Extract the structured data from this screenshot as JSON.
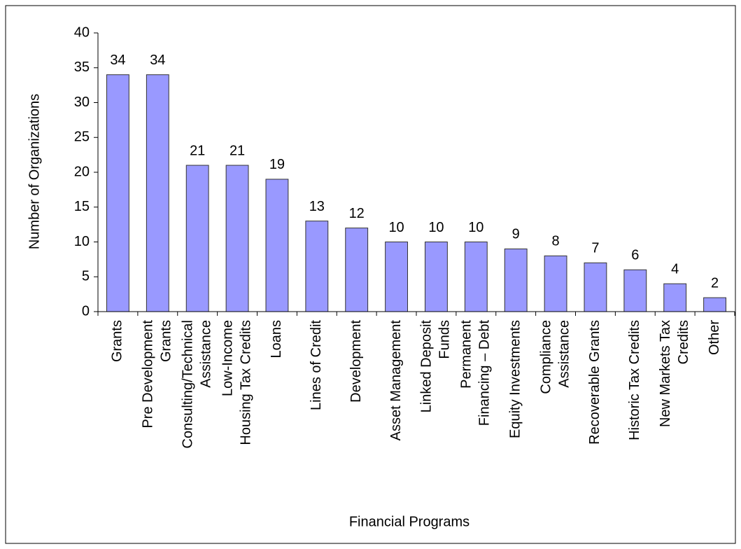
{
  "chart_data": {
    "type": "bar",
    "x_label": "Financial Programs",
    "y_label": "Number of Organizations",
    "categories": [
      [
        "Grants"
      ],
      [
        "Pre Development",
        "Grants"
      ],
      [
        "Consulting/Technical",
        "Assistance"
      ],
      [
        "Low-Income",
        "Housing Tax Credits"
      ],
      [
        "Loans"
      ],
      [
        "Lines of Credit"
      ],
      [
        "Development"
      ],
      [
        "Asset Management"
      ],
      [
        "Linked Deposit",
        "Funds"
      ],
      [
        "Permanent",
        "Financing – Debt"
      ],
      [
        "Equity Investments"
      ],
      [
        "Compliance",
        "Assistance"
      ],
      [
        "Recoverable Grants"
      ],
      [
        "Historic Tax Credits"
      ],
      [
        "New Markets Tax",
        "Credits"
      ],
      [
        "Other"
      ]
    ],
    "values": [
      34,
      34,
      21,
      21,
      19,
      13,
      12,
      10,
      10,
      10,
      9,
      8,
      7,
      6,
      4,
      2
    ],
    "color": "#9999ff",
    "ylim": [
      0,
      40
    ],
    "yticks": [
      0,
      5,
      10,
      15,
      20,
      25,
      30,
      35,
      40
    ]
  }
}
